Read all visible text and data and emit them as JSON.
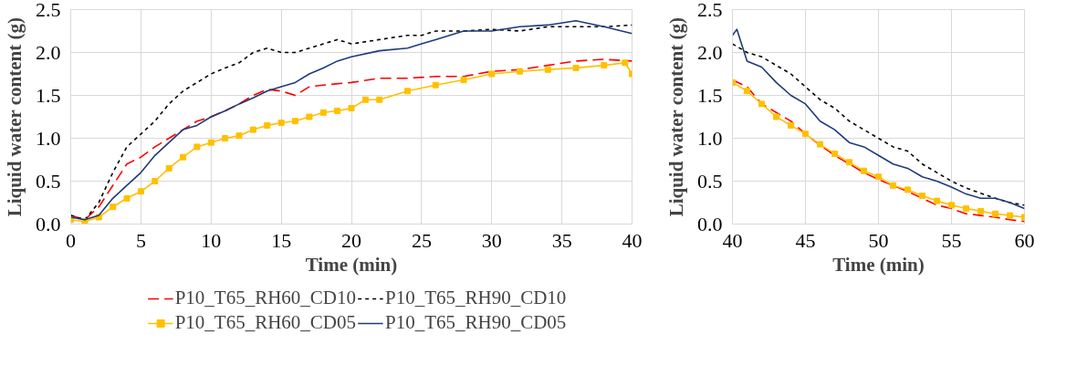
{
  "chart_data": [
    {
      "type": "line",
      "xlabel": "Time (min)",
      "ylabel": "Liquid water content (g)",
      "xlim": [
        0,
        40
      ],
      "xticks": [
        0,
        5,
        10,
        15,
        20,
        25,
        30,
        35,
        40
      ],
      "ylim": [
        0,
        2.5
      ],
      "yticks": [
        {
          "value": 0,
          "label": "0.0"
        },
        {
          "value": 0.5,
          "label": "0.5"
        },
        {
          "value": 1,
          "label": "1.0"
        },
        {
          "value": 1.5,
          "label": "1.5"
        },
        {
          "value": 2,
          "label": "2.0"
        },
        {
          "value": 2.5,
          "label": "2.5"
        }
      ],
      "grid": true,
      "legend": "bottom",
      "series": [
        {
          "name": "P10_T65_RH60_CD10",
          "color": "#ff0000",
          "line_style": "dashed",
          "x": [
            0,
            1,
            2,
            3,
            4,
            5,
            6,
            7,
            8,
            9,
            10,
            11,
            12,
            13,
            14,
            15,
            16,
            17,
            18,
            20,
            22,
            24,
            26,
            28,
            30,
            32,
            34,
            36,
            38,
            40
          ],
          "values": [
            0.1,
            0.05,
            0.2,
            0.45,
            0.7,
            0.78,
            0.9,
            1.0,
            1.1,
            1.2,
            1.25,
            1.32,
            1.4,
            1.5,
            1.57,
            1.55,
            1.5,
            1.6,
            1.62,
            1.65,
            1.7,
            1.7,
            1.72,
            1.72,
            1.78,
            1.8,
            1.85,
            1.9,
            1.92,
            1.9
          ]
        },
        {
          "name": "P10_T65_RH90_CD10",
          "color": "#000000",
          "line_style": "dotted",
          "x": [
            0,
            1,
            2,
            3,
            4,
            5,
            6,
            7,
            8,
            9,
            10,
            11,
            12,
            13,
            14,
            15,
            16,
            17,
            18,
            19,
            20,
            22,
            24,
            25,
            26,
            28,
            30,
            32,
            34,
            36,
            38,
            40
          ],
          "values": [
            0.1,
            0.05,
            0.25,
            0.6,
            0.9,
            1.05,
            1.2,
            1.4,
            1.55,
            1.65,
            1.75,
            1.82,
            1.88,
            2.0,
            2.05,
            2.0,
            2.0,
            2.05,
            2.1,
            2.15,
            2.1,
            2.15,
            2.2,
            2.2,
            2.25,
            2.25,
            2.27,
            2.25,
            2.3,
            2.3,
            2.3,
            2.32
          ]
        },
        {
          "name": "P10_T65_RH60_CD05",
          "color": "#ffc000",
          "line_style": "solid",
          "marker": "square",
          "x": [
            0,
            1,
            2,
            3,
            4,
            5,
            6,
            7,
            8,
            9,
            10,
            11,
            12,
            13,
            14,
            15,
            16,
            17,
            18,
            19,
            20,
            21,
            22,
            24,
            26,
            28,
            30,
            32,
            34,
            36,
            38,
            39.5,
            40
          ],
          "values": [
            0.05,
            0.03,
            0.08,
            0.2,
            0.3,
            0.38,
            0.5,
            0.65,
            0.78,
            0.9,
            0.95,
            1.0,
            1.03,
            1.1,
            1.15,
            1.18,
            1.2,
            1.25,
            1.3,
            1.32,
            1.35,
            1.45,
            1.45,
            1.55,
            1.62,
            1.68,
            1.75,
            1.78,
            1.8,
            1.82,
            1.85,
            1.88,
            1.75
          ]
        },
        {
          "name": "P10_T65_RH90_CD05",
          "color": "#1f3a7a",
          "line_style": "solid",
          "x": [
            0,
            1,
            2,
            3,
            4,
            5,
            6,
            7,
            8,
            9,
            10,
            11,
            12,
            13,
            14,
            15,
            16,
            17,
            18,
            19,
            20,
            22,
            24,
            25,
            26,
            28,
            30,
            32,
            34,
            36,
            38,
            40
          ],
          "values": [
            0.08,
            0.05,
            0.1,
            0.3,
            0.45,
            0.6,
            0.8,
            0.95,
            1.1,
            1.15,
            1.25,
            1.32,
            1.4,
            1.47,
            1.55,
            1.6,
            1.65,
            1.75,
            1.82,
            1.9,
            1.95,
            2.02,
            2.05,
            2.1,
            2.15,
            2.25,
            2.25,
            2.3,
            2.32,
            2.37,
            2.3,
            2.22
          ]
        }
      ]
    },
    {
      "type": "line",
      "xlabel": "Time (min)",
      "ylabel": "Liquid water content (g)",
      "xlim": [
        40,
        60
      ],
      "xticks": [
        40,
        45,
        50,
        55,
        60
      ],
      "ylim": [
        0,
        2.5
      ],
      "yticks": [
        {
          "value": 0,
          "label": "0.0"
        },
        {
          "value": 0.5,
          "label": "0.5"
        },
        {
          "value": 1,
          "label": "1.0"
        },
        {
          "value": 1.5,
          "label": "1.5"
        },
        {
          "value": 2,
          "label": "2.0"
        },
        {
          "value": 2.5,
          "label": "2.5"
        }
      ],
      "grid": true,
      "series": [
        {
          "color": "#ff0000",
          "line_style": "dashed",
          "x": [
            40,
            41,
            42,
            43,
            44,
            45,
            46,
            47,
            48,
            49,
            50,
            51,
            52,
            53,
            54,
            55,
            56,
            57,
            58,
            59,
            60
          ],
          "values": [
            1.68,
            1.6,
            1.4,
            1.3,
            1.2,
            1.05,
            0.92,
            0.8,
            0.7,
            0.6,
            0.52,
            0.45,
            0.38,
            0.3,
            0.22,
            0.18,
            0.12,
            0.1,
            0.08,
            0.05,
            0.03
          ]
        },
        {
          "color": "#000000",
          "line_style": "dotted",
          "x": [
            40,
            41,
            42,
            43,
            44,
            45,
            46,
            47,
            48,
            49,
            50,
            51,
            52,
            53,
            54,
            55,
            56,
            57,
            58,
            59,
            60
          ],
          "values": [
            2.1,
            2.0,
            1.95,
            1.85,
            1.75,
            1.6,
            1.45,
            1.35,
            1.2,
            1.1,
            1.0,
            0.9,
            0.85,
            0.7,
            0.6,
            0.5,
            0.42,
            0.36,
            0.3,
            0.25,
            0.22
          ]
        },
        {
          "color": "#ffc000",
          "line_style": "solid",
          "marker": "square",
          "x": [
            40,
            41,
            42,
            43,
            44,
            45,
            46,
            47,
            48,
            49,
            50,
            51,
            52,
            53,
            54,
            55,
            56,
            57,
            58,
            59,
            60
          ],
          "values": [
            1.65,
            1.55,
            1.4,
            1.25,
            1.15,
            1.05,
            0.93,
            0.82,
            0.72,
            0.62,
            0.55,
            0.45,
            0.4,
            0.33,
            0.27,
            0.22,
            0.18,
            0.15,
            0.12,
            0.1,
            0.08
          ]
        },
        {
          "color": "#1f3a7a",
          "line_style": "solid",
          "x": [
            40,
            40.3,
            41,
            42,
            43,
            44,
            45,
            46,
            47,
            48,
            49,
            50,
            51,
            52,
            53,
            54,
            55,
            56,
            57,
            58,
            59,
            60
          ],
          "values": [
            2.2,
            2.27,
            1.9,
            1.83,
            1.65,
            1.5,
            1.4,
            1.2,
            1.1,
            0.95,
            0.9,
            0.8,
            0.7,
            0.65,
            0.55,
            0.5,
            0.43,
            0.35,
            0.3,
            0.3,
            0.25,
            0.18
          ]
        }
      ]
    }
  ]
}
